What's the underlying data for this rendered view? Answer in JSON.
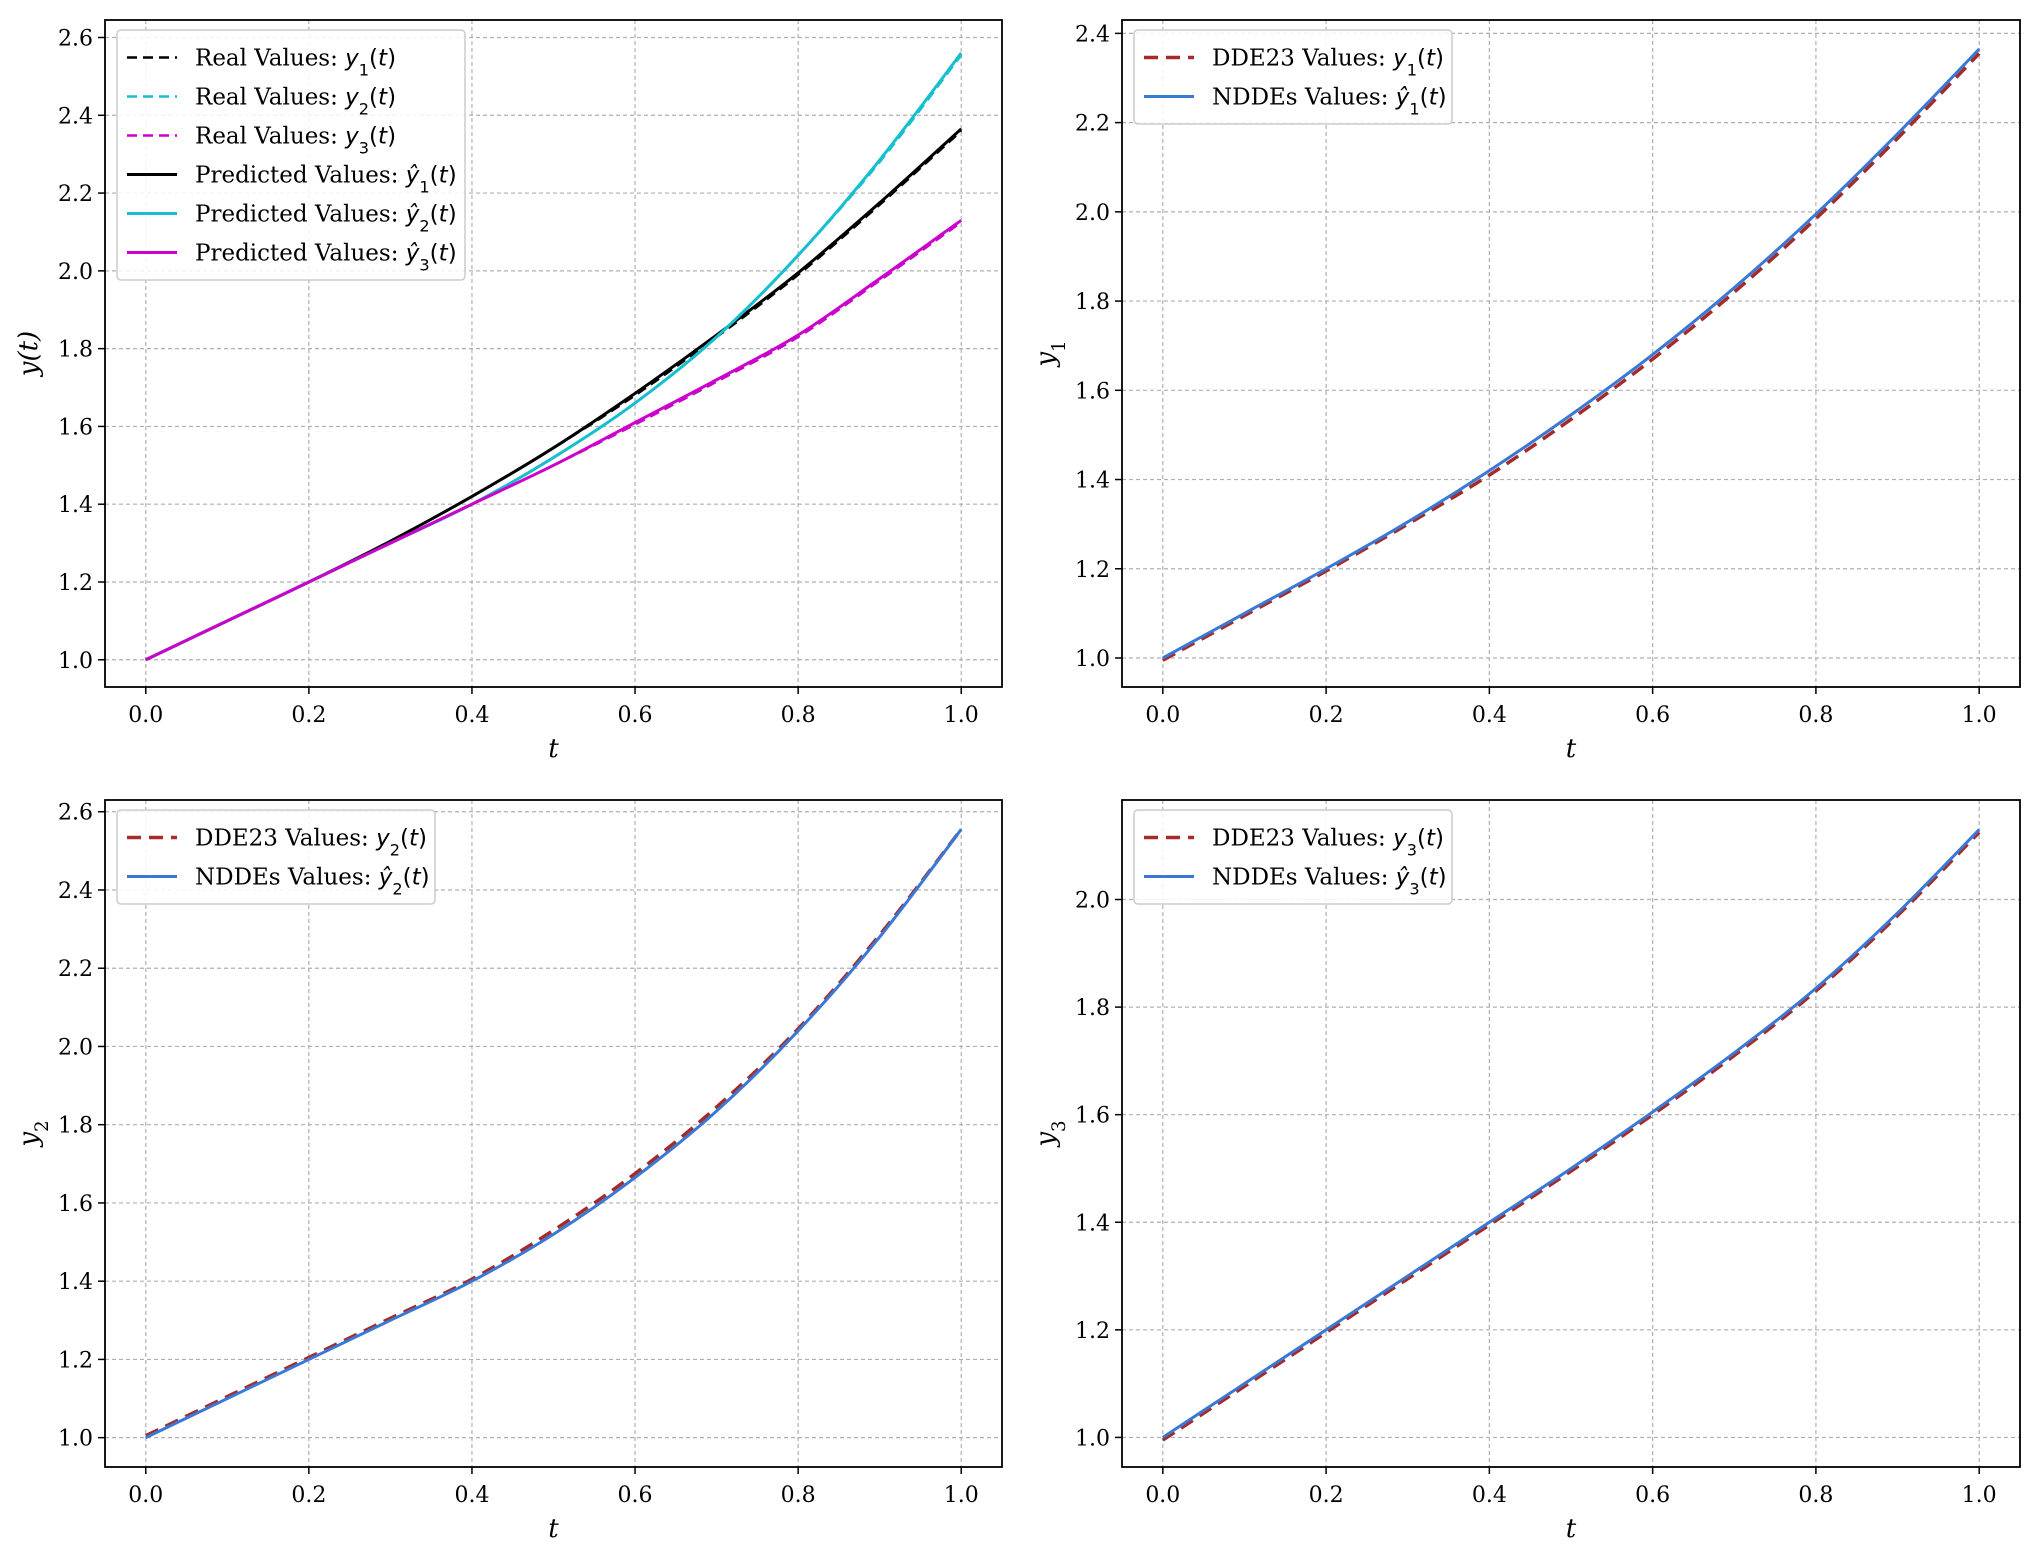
{
  "figure": {
    "background": "#ffffff"
  },
  "chart_data": [
    {
      "id": "top-left",
      "type": "line",
      "xlabel": "t",
      "ylabel": "y(t)",
      "xlim": [
        -0.05,
        1.05
      ],
      "ylim": [
        0.93,
        2.645
      ],
      "xticks": [
        0.0,
        0.2,
        0.4,
        0.6,
        0.8,
        1.0
      ],
      "xtick_labels": [
        "0.0",
        "0.2",
        "0.4",
        "0.6",
        "0.8",
        "1.0"
      ],
      "yticks": [
        1.0,
        1.2,
        1.4,
        1.6,
        1.8,
        2.0,
        2.2,
        2.4,
        2.6
      ],
      "ytick_labels": [
        "1.0",
        "1.2",
        "1.4",
        "1.6",
        "1.8",
        "2.0",
        "2.2",
        "2.4",
        "2.6"
      ],
      "grid": true,
      "legend_position": "upper-left",
      "x": [
        0.0,
        0.1,
        0.2,
        0.3,
        0.4,
        0.5,
        0.6,
        0.7,
        0.8,
        0.9,
        1.0
      ],
      "series": [
        {
          "name": "Real Values: y1(t)",
          "legend_prefix": "Real Values: ",
          "symbol": "y",
          "sub": "1",
          "hat": false,
          "color": "#000000",
          "dash": "10,6",
          "width": 2.5,
          "values": [
            1.0,
            1.1,
            1.2,
            1.305,
            1.42,
            1.545,
            1.68,
            1.83,
            1.99,
            2.17,
            2.36
          ]
        },
        {
          "name": "Real Values: y2(t)",
          "legend_prefix": "Real Values: ",
          "symbol": "y",
          "sub": "2",
          "hat": false,
          "color": "#17becf",
          "dash": "10,6",
          "width": 2.5,
          "values": [
            1.0,
            1.1,
            1.2,
            1.3,
            1.4,
            1.52,
            1.66,
            1.83,
            2.04,
            2.28,
            2.555
          ]
        },
        {
          "name": "Real Values: y3(t)",
          "legend_prefix": "Real Values: ",
          "symbol": "y",
          "sub": "3",
          "hat": false,
          "color": "#cc00cc",
          "dash": "10,6",
          "width": 2.5,
          "values": [
            1.0,
            1.1,
            1.2,
            1.3,
            1.4,
            1.5,
            1.605,
            1.715,
            1.83,
            1.975,
            2.125
          ]
        },
        {
          "name": "Predicted Values: y1-hat(t)",
          "legend_prefix": "Predicted Values: ",
          "symbol": "y",
          "sub": "1",
          "hat": true,
          "color": "#000000",
          "dash": "",
          "width": 3,
          "values": [
            1.0,
            1.1,
            1.2,
            1.305,
            1.42,
            1.545,
            1.685,
            1.835,
            1.995,
            2.175,
            2.365
          ]
        },
        {
          "name": "Predicted Values: y2-hat(t)",
          "legend_prefix": "Predicted Values: ",
          "symbol": "y",
          "sub": "2",
          "hat": true,
          "color": "#17becf",
          "dash": "",
          "width": 3,
          "values": [
            1.0,
            1.1,
            1.2,
            1.3,
            1.4,
            1.52,
            1.66,
            1.83,
            2.04,
            2.285,
            2.56
          ]
        },
        {
          "name": "Predicted Values: y3-hat(t)",
          "legend_prefix": "Predicted Values: ",
          "symbol": "y",
          "sub": "3",
          "hat": true,
          "color": "#cc00cc",
          "dash": "",
          "width": 3,
          "values": [
            1.0,
            1.1,
            1.2,
            1.3,
            1.4,
            1.5,
            1.61,
            1.72,
            1.835,
            1.98,
            2.13
          ]
        }
      ]
    },
    {
      "id": "top-right",
      "type": "line",
      "xlabel": "t",
      "ylabel": "y1",
      "xlim": [
        -0.05,
        1.05
      ],
      "ylim": [
        0.935,
        2.43
      ],
      "xticks": [
        0.0,
        0.2,
        0.4,
        0.6,
        0.8,
        1.0
      ],
      "xtick_labels": [
        "0.0",
        "0.2",
        "0.4",
        "0.6",
        "0.8",
        "1.0"
      ],
      "yticks": [
        1.0,
        1.2,
        1.4,
        1.6,
        1.8,
        2.0,
        2.2,
        2.4
      ],
      "ytick_labels": [
        "1.0",
        "1.2",
        "1.4",
        "1.6",
        "1.8",
        "2.0",
        "2.2",
        "2.4"
      ],
      "grid": true,
      "legend_position": "upper-left",
      "x": [
        0.0,
        0.1,
        0.2,
        0.3,
        0.4,
        0.5,
        0.6,
        0.7,
        0.8,
        0.9,
        1.0
      ],
      "series": [
        {
          "name": "DDE23 Values: y1(t)",
          "legend_prefix": "DDE23 Values: ",
          "symbol": "y",
          "sub": "1",
          "hat": false,
          "color": "#a52a2a",
          "dash": "14,8",
          "width": 3.5,
          "values": [
            0.995,
            1.095,
            1.195,
            1.3,
            1.41,
            1.535,
            1.67,
            1.82,
            1.985,
            2.165,
            2.355
          ]
        },
        {
          "name": "NDDEs Values: y1-hat(t)",
          "legend_prefix": "NDDEs Values: ",
          "symbol": "y",
          "sub": "1",
          "hat": true,
          "color": "#3a78d6",
          "dash": "",
          "width": 3,
          "values": [
            1.0,
            1.1,
            1.2,
            1.305,
            1.42,
            1.545,
            1.68,
            1.83,
            1.995,
            2.175,
            2.365
          ]
        }
      ]
    },
    {
      "id": "bottom-left",
      "type": "line",
      "xlabel": "t",
      "ylabel": "y2",
      "xlim": [
        -0.05,
        1.05
      ],
      "ylim": [
        0.925,
        2.63
      ],
      "xticks": [
        0.0,
        0.2,
        0.4,
        0.6,
        0.8,
        1.0
      ],
      "xtick_labels": [
        "0.0",
        "0.2",
        "0.4",
        "0.6",
        "0.8",
        "1.0"
      ],
      "yticks": [
        1.0,
        1.2,
        1.4,
        1.6,
        1.8,
        2.0,
        2.2,
        2.4,
        2.6
      ],
      "ytick_labels": [
        "1.0",
        "1.2",
        "1.4",
        "1.6",
        "1.8",
        "2.0",
        "2.2",
        "2.4",
        "2.6"
      ],
      "grid": true,
      "legend_position": "upper-left",
      "x": [
        0.0,
        0.1,
        0.2,
        0.3,
        0.4,
        0.5,
        0.6,
        0.7,
        0.8,
        0.9,
        1.0
      ],
      "series": [
        {
          "name": "DDE23 Values: y2(t)",
          "legend_prefix": "DDE23 Values: ",
          "symbol": "y",
          "sub": "2",
          "hat": false,
          "color": "#a52a2a",
          "dash": "14,8",
          "width": 3.5,
          "values": [
            1.005,
            1.105,
            1.205,
            1.305,
            1.405,
            1.53,
            1.675,
            1.845,
            2.045,
            2.285,
            2.555
          ]
        },
        {
          "name": "NDDEs Values: y2-hat(t)",
          "legend_prefix": "NDDEs Values: ",
          "symbol": "y",
          "sub": "2",
          "hat": true,
          "color": "#3a78d6",
          "dash": "",
          "width": 3,
          "values": [
            1.0,
            1.1,
            1.2,
            1.3,
            1.4,
            1.52,
            1.665,
            1.835,
            2.04,
            2.28,
            2.555
          ]
        }
      ]
    },
    {
      "id": "bottom-right",
      "type": "line",
      "xlabel": "t",
      "ylabel": "y3",
      "xlim": [
        -0.05,
        1.05
      ],
      "ylim": [
        0.945,
        2.185
      ],
      "xticks": [
        0.0,
        0.2,
        0.4,
        0.6,
        0.8,
        1.0
      ],
      "xtick_labels": [
        "0.0",
        "0.2",
        "0.4",
        "0.6",
        "0.8",
        "1.0"
      ],
      "yticks": [
        1.0,
        1.2,
        1.4,
        1.6,
        1.8,
        2.0
      ],
      "ytick_labels": [
        "1.0",
        "1.2",
        "1.4",
        "1.6",
        "1.8",
        "2.0"
      ],
      "grid": true,
      "legend_position": "upper-left",
      "x": [
        0.0,
        0.1,
        0.2,
        0.3,
        0.4,
        0.5,
        0.6,
        0.7,
        0.8,
        0.9,
        1.0
      ],
      "series": [
        {
          "name": "DDE23 Values: y3(t)",
          "legend_prefix": "DDE23 Values: ",
          "symbol": "y",
          "sub": "3",
          "hat": false,
          "color": "#a52a2a",
          "dash": "14,8",
          "width": 3.5,
          "values": [
            0.995,
            1.095,
            1.195,
            1.295,
            1.395,
            1.495,
            1.6,
            1.71,
            1.83,
            1.97,
            2.125
          ]
        },
        {
          "name": "NDDEs Values: y3-hat(t)",
          "legend_prefix": "NDDEs Values: ",
          "symbol": "y",
          "sub": "3",
          "hat": true,
          "color": "#3a78d6",
          "dash": "",
          "width": 3,
          "values": [
            1.0,
            1.1,
            1.2,
            1.3,
            1.4,
            1.5,
            1.605,
            1.715,
            1.835,
            1.975,
            2.13
          ]
        }
      ]
    }
  ]
}
